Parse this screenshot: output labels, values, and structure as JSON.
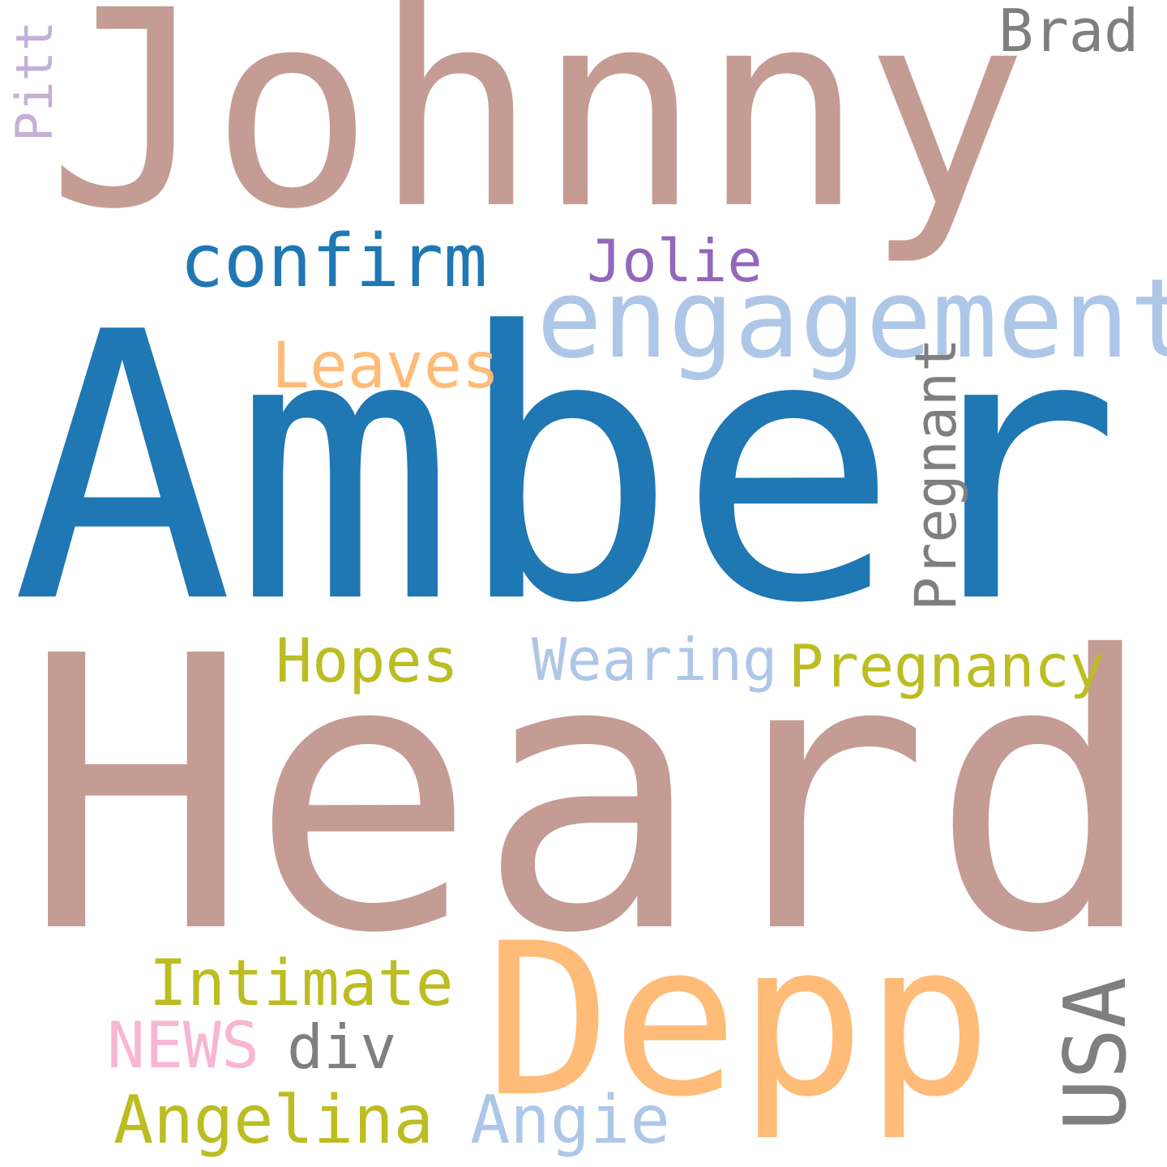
{
  "words": [
    {
      "key": "johnny",
      "text": "Johnny",
      "color": "#c49c94"
    },
    {
      "key": "amber",
      "text": "Amber",
      "color": "#1f77b4"
    },
    {
      "key": "heard",
      "text": "Heard",
      "color": "#c49c94"
    },
    {
      "key": "engagement",
      "text": "engagement",
      "color": "#aec7e8"
    },
    {
      "key": "confirm",
      "text": "confirm",
      "color": "#1f77b4"
    },
    {
      "key": "jolie",
      "text": "Jolie",
      "color": "#9467bd"
    },
    {
      "key": "leaves",
      "text": "Leaves",
      "color": "#ffbb78"
    },
    {
      "key": "brad",
      "text": "Brad",
      "color": "#7f7f7f"
    },
    {
      "key": "pitt",
      "text": "Pitt",
      "color": "#c5b0d5",
      "orientation": "vertical"
    },
    {
      "key": "pregnant",
      "text": "Pregnant",
      "color": "#7f7f7f",
      "orientation": "vertical"
    },
    {
      "key": "hopes",
      "text": "Hopes",
      "color": "#bcbd22"
    },
    {
      "key": "wearing",
      "text": "Wearing",
      "color": "#aec7e8"
    },
    {
      "key": "pregnancy",
      "text": "Pregnancy",
      "color": "#bcbd22"
    },
    {
      "key": "depp",
      "text": "Depp",
      "color": "#ffbb78"
    },
    {
      "key": "intimate",
      "text": "Intimate",
      "color": "#bcbd22"
    },
    {
      "key": "news",
      "text": "NEWS",
      "color": "#f7b6d2"
    },
    {
      "key": "div",
      "text": "div",
      "color": "#7f7f7f"
    },
    {
      "key": "angelina",
      "text": "Angelina",
      "color": "#bcbd22"
    },
    {
      "key": "angie",
      "text": "Angie",
      "color": "#aec7e8"
    },
    {
      "key": "usa",
      "text": "USA",
      "color": "#7f7f7f",
      "orientation": "vertical"
    }
  ]
}
